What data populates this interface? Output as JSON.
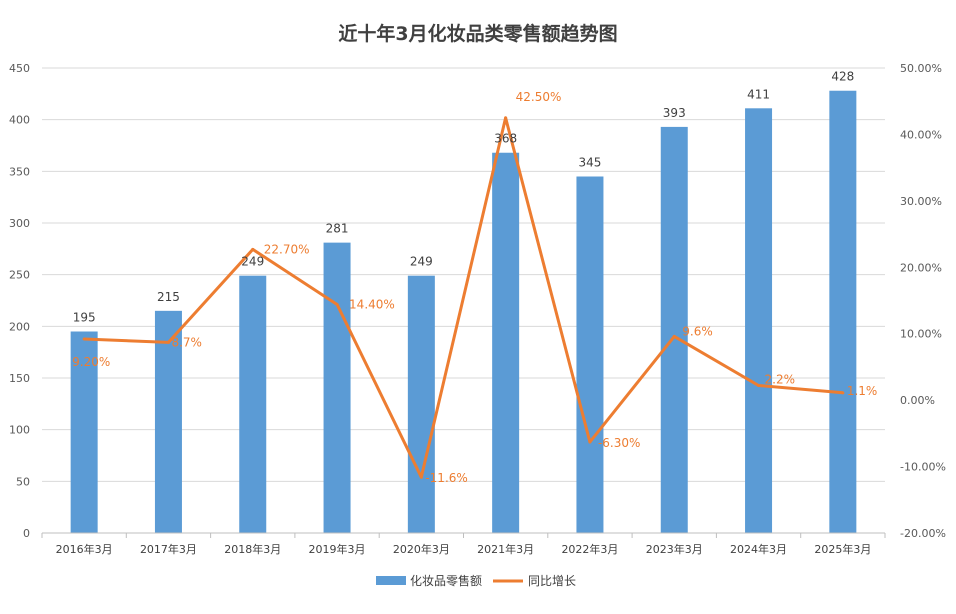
{
  "chart_data": {
    "type": "bar+line",
    "title": "近十年3月化妆品类零售额趋势图",
    "categories": [
      "2016年3月",
      "2017年3月",
      "2018年3月",
      "2019年3月",
      "2020年3月",
      "2021年3月",
      "2022年3月",
      "2023年3月",
      "2024年3月",
      "2025年3月"
    ],
    "series": [
      {
        "name": "化妆品零售额",
        "type": "bar",
        "axis": "left",
        "color": "#5B9BD5",
        "values": [
          195,
          215,
          249,
          281,
          249,
          368,
          345,
          393,
          411,
          428
        ],
        "labels": [
          "195",
          "215",
          "249",
          "281",
          "249",
          "368",
          "345",
          "393",
          "411",
          "428"
        ]
      },
      {
        "name": "同比增长",
        "type": "line",
        "axis": "right",
        "color": "#ED7D31",
        "values": [
          9.2,
          8.7,
          22.7,
          14.4,
          -11.6,
          42.5,
          -6.3,
          9.6,
          2.2,
          1.1
        ],
        "labels": [
          "9.20%",
          "8.7%",
          "22.70%",
          "14.40%",
          "-11.6%",
          "42.50%",
          "-6.30%",
          "9.6%",
          "2.2%",
          "1.1%"
        ]
      }
    ],
    "y_left": {
      "min": 0,
      "max": 450,
      "step": 50,
      "ticks": [
        "0",
        "50",
        "100",
        "150",
        "200",
        "250",
        "300",
        "350",
        "400",
        "450"
      ]
    },
    "y_right": {
      "min": -20,
      "max": 50,
      "step": 10,
      "ticks": [
        "-20.00%",
        "-10.00%",
        "0.00%",
        "10.00%",
        "20.00%",
        "30.00%",
        "40.00%",
        "50.00%"
      ]
    },
    "grid": true,
    "legend_position": "bottom",
    "legend": [
      "化妆品零售额",
      "同比增长"
    ]
  }
}
